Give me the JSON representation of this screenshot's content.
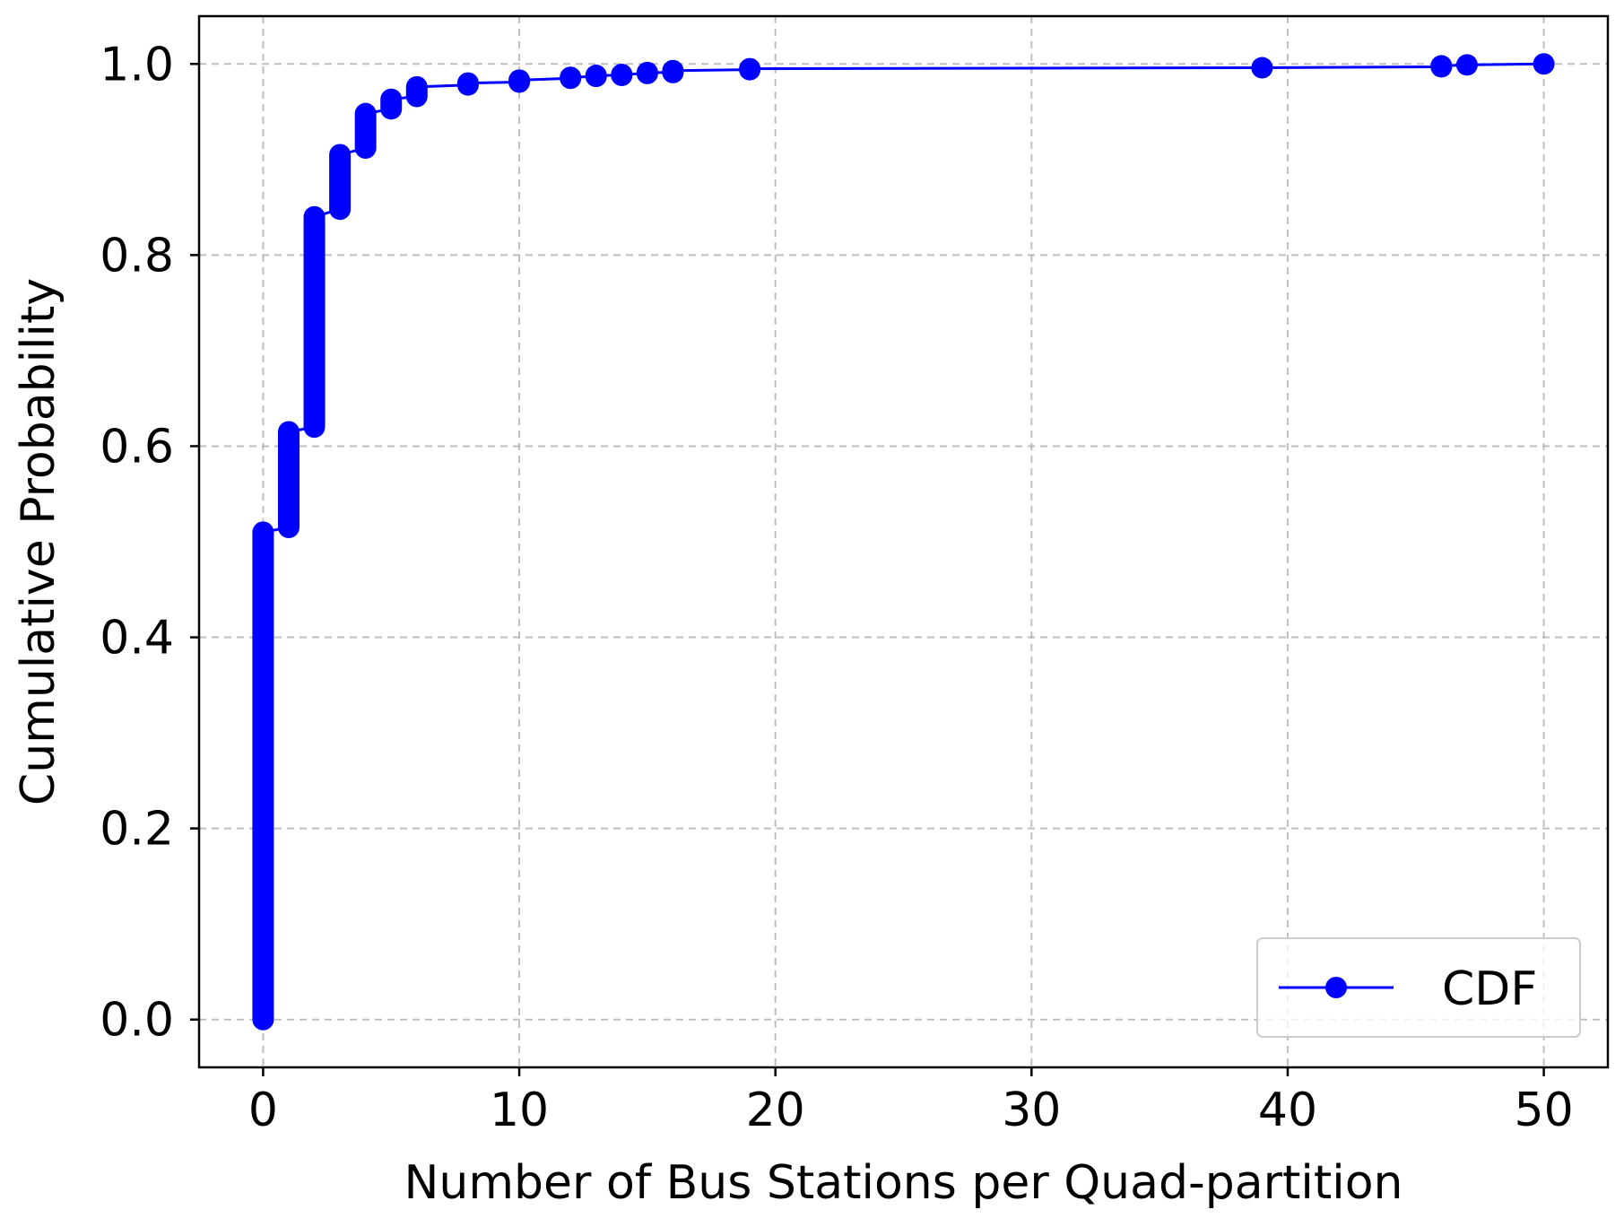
{
  "chart_data": {
    "type": "line",
    "title": "",
    "xlabel": "Number of Bus Stations per Quad-partition",
    "ylabel": "Cumulative Probability",
    "xlim": [
      -2.5,
      52.5
    ],
    "ylim": [
      -0.05,
      1.05
    ],
    "xticks": [
      0,
      10,
      20,
      30,
      40,
      50
    ],
    "yticks": [
      0.0,
      0.2,
      0.4,
      0.6,
      0.8,
      1.0
    ],
    "xtick_labels": [
      "0",
      "10",
      "20",
      "30",
      "40",
      "50"
    ],
    "ytick_labels": [
      "0.0",
      "0.2",
      "0.4",
      "0.6",
      "0.8",
      "1.0"
    ],
    "grid": true,
    "legend_position": "bottom-right",
    "series": [
      {
        "name": "CDF",
        "color": "#0000ff",
        "marker": "circle",
        "steps": [
          {
            "x": 0,
            "y_start": 0.0,
            "y_end": 0.51
          },
          {
            "x": 1,
            "y_start": 0.515,
            "y_end": 0.615
          },
          {
            "x": 2,
            "y_start": 0.62,
            "y_end": 0.84
          },
          {
            "x": 3,
            "y_start": 0.848,
            "y_end": 0.905
          },
          {
            "x": 4,
            "y_start": 0.912,
            "y_end": 0.948
          },
          {
            "x": 5,
            "y_start": 0.953,
            "y_end": 0.963
          },
          {
            "x": 6,
            "y_start": 0.966,
            "y_end": 0.976
          },
          {
            "x": 8,
            "y_start": 0.978,
            "y_end": 0.98
          },
          {
            "x": 10,
            "y_start": 0.981,
            "y_end": 0.983
          },
          {
            "x": 12,
            "y_start": 0.985,
            "y_end": 0.986
          },
          {
            "x": 13,
            "y_start": 0.987,
            "y_end": 0.988
          },
          {
            "x": 14,
            "y_start": 0.988,
            "y_end": 0.989
          },
          {
            "x": 15,
            "y_start": 0.99,
            "y_end": 0.991
          },
          {
            "x": 16,
            "y_start": 0.991,
            "y_end": 0.993
          },
          {
            "x": 19,
            "y_start": 0.994,
            "y_end": 0.995
          },
          {
            "x": 39,
            "y_start": 0.996,
            "y_end": 0.996
          },
          {
            "x": 46,
            "y_start": 0.997,
            "y_end": 0.998
          },
          {
            "x": 47,
            "y_start": 0.999,
            "y_end": 0.999
          },
          {
            "x": 50,
            "y_start": 1.0,
            "y_end": 1.0
          }
        ]
      }
    ]
  }
}
